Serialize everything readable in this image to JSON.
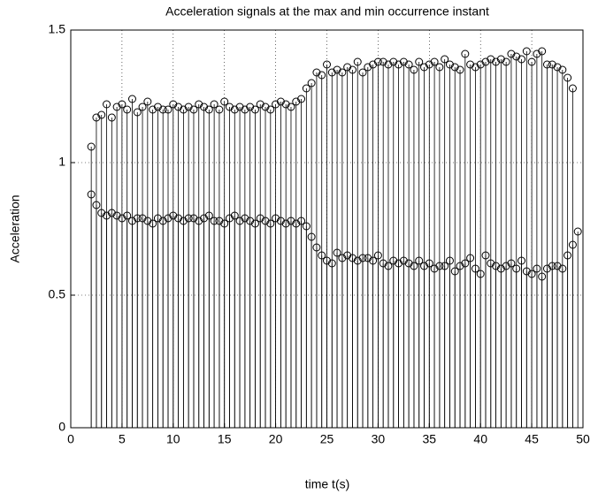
{
  "chart_data": {
    "type": "stem",
    "title": "Acceleration signals at the max and min occurrence instant",
    "xlabel": "time t(s)",
    "ylabel": "Acceleration",
    "xlim": [
      0,
      50
    ],
    "ylim": [
      0,
      1.5
    ],
    "xticks": [
      0,
      5,
      10,
      15,
      20,
      25,
      30,
      35,
      40,
      45,
      50
    ],
    "yticks": [
      0,
      0.5,
      1,
      1.5
    ],
    "grid": true,
    "x": [
      2,
      2.5,
      3,
      3.5,
      4,
      4.5,
      5,
      5.5,
      6,
      6.5,
      7,
      7.5,
      8,
      8.5,
      9,
      9.5,
      10,
      10.5,
      11,
      11.5,
      12,
      12.5,
      13,
      13.5,
      14,
      14.5,
      15,
      15.5,
      16,
      16.5,
      17,
      17.5,
      18,
      18.5,
      19,
      19.5,
      20,
      20.5,
      21,
      21.5,
      22,
      22.5,
      23,
      23.5,
      24,
      24.5,
      25,
      25.5,
      26,
      26.5,
      27,
      27.5,
      28,
      28.5,
      29,
      29.5,
      30,
      30.5,
      31,
      31.5,
      32,
      32.5,
      33,
      33.5,
      34,
      34.5,
      35,
      35.5,
      36,
      36.5,
      37,
      37.5,
      38,
      38.5,
      39,
      39.5,
      40,
      40.5,
      41,
      41.5,
      42,
      42.5,
      43,
      43.5,
      44,
      44.5,
      45,
      45.5,
      46,
      46.5,
      47,
      47.5,
      48,
      48.5,
      49,
      49.5
    ],
    "series": [
      {
        "color": "#000000",
        "values": [
          1.06,
          1.17,
          1.18,
          1.22,
          1.17,
          1.21,
          1.22,
          1.2,
          1.24,
          1.19,
          1.21,
          1.23,
          1.2,
          1.21,
          1.2,
          1.2,
          1.22,
          1.21,
          1.2,
          1.21,
          1.2,
          1.22,
          1.21,
          1.2,
          1.22,
          1.2,
          1.23,
          1.21,
          1.2,
          1.21,
          1.2,
          1.21,
          1.2,
          1.22,
          1.21,
          1.2,
          1.22,
          1.23,
          1.22,
          1.21,
          1.23,
          1.24,
          1.28,
          1.3,
          1.34,
          1.33,
          1.37,
          1.34,
          1.35,
          1.34,
          1.36,
          1.35,
          1.38,
          1.34,
          1.36,
          1.37,
          1.38,
          1.38,
          1.37,
          1.38,
          1.37,
          1.38,
          1.37,
          1.35,
          1.38,
          1.36,
          1.37,
          1.38,
          1.36,
          1.39,
          1.37,
          1.36,
          1.35,
          1.41,
          1.37,
          1.36,
          1.37,
          1.38,
          1.39,
          1.38,
          1.39,
          1.38,
          1.41,
          1.4,
          1.39,
          1.42,
          1.38,
          1.41,
          1.42,
          1.37,
          1.37,
          1.36,
          1.35,
          1.32,
          1.28,
          null
        ]
      },
      {
        "color": "#000000",
        "values": [
          0.88,
          0.84,
          0.81,
          0.8,
          0.81,
          0.8,
          0.79,
          0.8,
          0.78,
          0.79,
          0.79,
          0.78,
          0.77,
          0.79,
          0.78,
          0.79,
          0.8,
          0.79,
          0.78,
          0.79,
          0.79,
          0.78,
          0.79,
          0.8,
          0.78,
          0.78,
          0.77,
          0.79,
          0.8,
          0.78,
          0.79,
          0.78,
          0.77,
          0.79,
          0.78,
          0.77,
          0.79,
          0.78,
          0.77,
          0.78,
          0.77,
          0.78,
          0.76,
          0.72,
          0.68,
          0.65,
          0.63,
          0.62,
          0.66,
          0.64,
          0.65,
          0.64,
          0.63,
          0.64,
          0.64,
          0.63,
          0.65,
          0.62,
          0.61,
          0.63,
          0.62,
          0.63,
          0.62,
          0.61,
          0.63,
          0.61,
          0.62,
          0.6,
          0.61,
          0.61,
          0.63,
          0.59,
          0.61,
          0.62,
          0.64,
          0.6,
          0.58,
          0.65,
          0.62,
          0.61,
          0.6,
          0.61,
          0.62,
          0.6,
          0.63,
          0.59,
          0.58,
          0.6,
          0.57,
          0.6,
          0.61,
          0.61,
          0.6,
          0.65,
          0.69,
          0.74
        ]
      }
    ]
  }
}
